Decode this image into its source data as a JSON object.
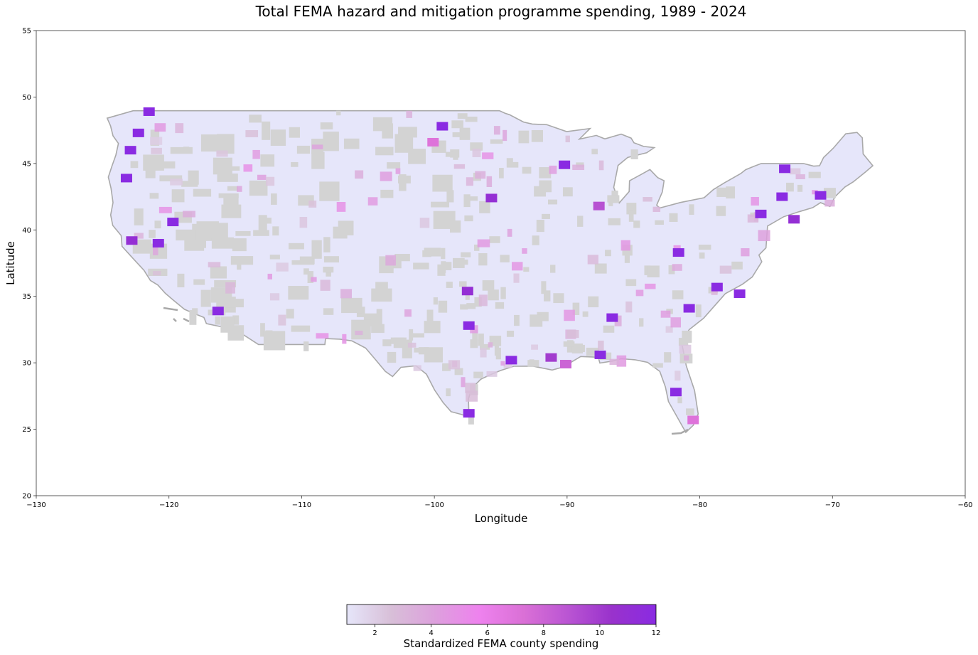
{
  "chart_data": {
    "type": "choropleth-map",
    "title": "Total FEMA hazard and mitigation programme spending, 1989 - 2024",
    "xlabel": "Longitude",
    "ylabel": "Latitude",
    "xlim": [
      -130,
      -60
    ],
    "ylim": [
      20,
      55
    ],
    "xticks": [
      -130,
      -120,
      -110,
      -100,
      -90,
      -80,
      -70,
      -60
    ],
    "xtick_labels": [
      "−130",
      "−120",
      "−110",
      "−100",
      "−90",
      "−80",
      "−70",
      "−60"
    ],
    "yticks": [
      20,
      25,
      30,
      35,
      40,
      45,
      50,
      55
    ],
    "grid": false,
    "map_region": "Contiguous United States, county level",
    "no_data_color": "#d3d3d3",
    "boundary_color": "#a9a9a9",
    "colorbar": {
      "label": "Standardized FEMA county spending",
      "orientation": "horizontal",
      "range": [
        1,
        12
      ],
      "ticks": [
        2,
        4,
        6,
        8,
        10,
        12
      ],
      "colors": [
        "#e6e6fa",
        "#d8bfd8",
        "#dda0dd",
        "#ee82ee",
        "#da70d6",
        "#ba55d3",
        "#9932cc",
        "#8a2be2"
      ]
    },
    "highlighted_counties": [
      {
        "lon": -122.3,
        "lat": 47.3,
        "value": 12
      },
      {
        "lon": -121.5,
        "lat": 48.9,
        "value": 12
      },
      {
        "lon": -123.2,
        "lat": 43.9,
        "value": 12
      },
      {
        "lon": -122.9,
        "lat": 46.0,
        "value": 12
      },
      {
        "lon": -119.7,
        "lat": 40.6,
        "value": 12
      },
      {
        "lon": -120.8,
        "lat": 39.0,
        "value": 12
      },
      {
        "lon": -122.8,
        "lat": 39.2,
        "value": 11
      },
      {
        "lon": -116.3,
        "lat": 33.9,
        "value": 12
      },
      {
        "lon": -99.4,
        "lat": 47.8,
        "value": 12
      },
      {
        "lon": -100.1,
        "lat": 46.6,
        "value": 7
      },
      {
        "lon": -90.2,
        "lat": 44.9,
        "value": 12
      },
      {
        "lon": -95.7,
        "lat": 42.4,
        "value": 11
      },
      {
        "lon": -87.6,
        "lat": 41.8,
        "value": 9
      },
      {
        "lon": -86.6,
        "lat": 33.4,
        "value": 12
      },
      {
        "lon": -97.5,
        "lat": 35.4,
        "value": 11
      },
      {
        "lon": -97.4,
        "lat": 32.8,
        "value": 12
      },
      {
        "lon": -94.2,
        "lat": 30.2,
        "value": 12
      },
      {
        "lon": -91.2,
        "lat": 30.4,
        "value": 10
      },
      {
        "lon": -90.1,
        "lat": 29.9,
        "value": 8
      },
      {
        "lon": -87.5,
        "lat": 30.6,
        "value": 12
      },
      {
        "lon": -81.8,
        "lat": 27.8,
        "value": 12
      },
      {
        "lon": -80.5,
        "lat": 25.7,
        "value": 7
      },
      {
        "lon": -97.4,
        "lat": 26.2,
        "value": 12
      },
      {
        "lon": -78.7,
        "lat": 35.7,
        "value": 12
      },
      {
        "lon": -77.0,
        "lat": 35.2,
        "value": 12
      },
      {
        "lon": -80.8,
        "lat": 34.1,
        "value": 12
      },
      {
        "lon": -81.6,
        "lat": 38.3,
        "value": 12
      },
      {
        "lon": -73.6,
        "lat": 44.6,
        "value": 12
      },
      {
        "lon": -73.8,
        "lat": 42.5,
        "value": 12
      },
      {
        "lon": -72.9,
        "lat": 40.8,
        "value": 11
      },
      {
        "lon": -75.4,
        "lat": 41.2,
        "value": 12
      },
      {
        "lon": -70.9,
        "lat": 42.6,
        "value": 12
      }
    ]
  }
}
